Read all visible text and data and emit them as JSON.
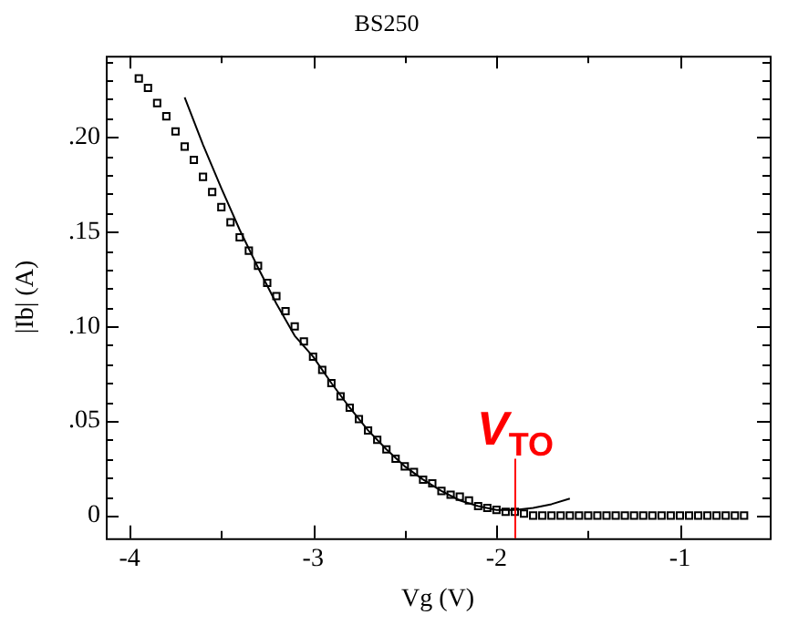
{
  "chart_data": {
    "type": "scatter",
    "title": "BS250",
    "xlabel": "Vg (V)",
    "ylabel": "|Ib| (A)",
    "xlim": [
      -4.13,
      -0.51
    ],
    "xticks": [
      -4,
      {
        "value": -3.5,
        "label": null
      },
      -3,
      {
        "value": -2.5,
        "label": null
      },
      -2,
      {
        "value": -1.5,
        "label": null
      },
      -1
    ],
    "ylim": [
      -0.012,
      0.243
    ],
    "yticks": [
      0,
      {
        "value": 0.01,
        "label": null
      },
      {
        "value": 0.02,
        "label": null
      },
      {
        "value": 0.03,
        "label": null
      },
      {
        "value": 0.04,
        "label": null
      },
      {
        "value": 0.05,
        "label": ".05"
      },
      {
        "value": 0.06,
        "label": null
      },
      {
        "value": 0.07,
        "label": null
      },
      {
        "value": 0.08,
        "label": null
      },
      {
        "value": 0.09,
        "label": null
      },
      {
        "value": 0.1,
        "label": ".10"
      },
      {
        "value": 0.11,
        "label": null
      },
      {
        "value": 0.12,
        "label": null
      },
      {
        "value": 0.13,
        "label": null
      },
      {
        "value": 0.14,
        "label": null
      },
      {
        "value": 0.15,
        "label": ".15"
      },
      {
        "value": 0.16,
        "label": null
      },
      {
        "value": 0.17,
        "label": null
      },
      {
        "value": 0.18,
        "label": null
      },
      {
        "value": 0.19,
        "label": null
      },
      {
        "value": 0.2,
        "label": ".20"
      },
      {
        "value": 0.21,
        "label": null
      },
      {
        "value": 0.22,
        "label": null
      },
      {
        "value": 0.23,
        "label": null
      },
      {
        "value": 0.24,
        "label": null
      }
    ],
    "grid": false,
    "legend": false,
    "series": [
      {
        "marker": "square",
        "color": "#000000",
        "x": [
          -3.95,
          -3.9,
          -3.85,
          -3.8,
          -3.75,
          -3.7,
          -3.65,
          -3.6,
          -3.55,
          -3.5,
          -3.45,
          -3.4,
          -3.35,
          -3.3,
          -3.25,
          -3.2,
          -3.15,
          -3.1,
          -3.05,
          -3.0,
          -2.95,
          -2.9,
          -2.85,
          -2.8,
          -2.75,
          -2.7,
          -2.65,
          -2.6,
          -2.55,
          -2.5,
          -2.45,
          -2.4,
          -2.35,
          -2.3,
          -2.25,
          -2.2,
          -2.15,
          -2.1,
          -2.05,
          -2.0,
          -1.95,
          -1.9,
          -1.85,
          -1.8,
          -1.75,
          -1.7,
          -1.65,
          -1.6,
          -1.55,
          -1.5,
          -1.45,
          -1.4,
          -1.35,
          -1.3,
          -1.25,
          -1.2,
          -1.15,
          -1.1,
          -1.05,
          -1.0,
          -0.95,
          -0.9,
          -0.85,
          -0.8,
          -0.75,
          -0.7,
          -0.65
        ],
        "values": [
          0.231,
          0.226,
          0.218,
          0.211,
          0.203,
          0.195,
          0.188,
          0.179,
          0.171,
          0.163,
          0.155,
          0.147,
          0.14,
          0.132,
          0.123,
          0.116,
          0.108,
          0.1,
          0.092,
          0.084,
          0.077,
          0.07,
          0.063,
          0.057,
          0.051,
          0.045,
          0.04,
          0.035,
          0.03,
          0.026,
          0.023,
          0.019,
          0.017,
          0.013,
          0.011,
          0.01,
          0.008,
          0.005,
          0.004,
          0.003,
          0.002,
          0.002,
          0.001,
          0,
          0,
          0,
          0,
          0,
          0,
          0,
          0,
          0,
          0,
          0,
          0,
          0,
          0,
          0,
          0,
          0,
          0,
          0,
          0,
          0,
          0,
          0,
          0
        ]
      },
      {
        "type": "line",
        "marker": "none",
        "line_style": "solid",
        "color": "#000000",
        "x": [
          -3.7,
          -3.6,
          -3.5,
          -3.4,
          -3.3,
          -3.2,
          -3.1,
          -3.0,
          -2.9,
          -2.8,
          -2.7,
          -2.6,
          -2.5,
          -2.4,
          -2.3,
          -2.2,
          -2.1,
          -2.0,
          -1.9,
          -1.8,
          -1.7,
          -1.6
        ],
        "values": [
          0.221,
          0.196,
          0.173,
          0.151,
          0.131,
          0.112,
          0.095,
          0.084,
          0.07,
          0.057,
          0.045,
          0.035,
          0.026,
          0.019,
          0.013,
          0.008,
          0.005,
          0.003,
          0.003,
          0.004,
          0.006,
          0.009
        ]
      }
    ],
    "ref_lines": [
      {
        "axis": "x",
        "value": -1.9,
        "label": "V$_{TO}$",
        "color": "#ff0000"
      }
    ]
  }
}
